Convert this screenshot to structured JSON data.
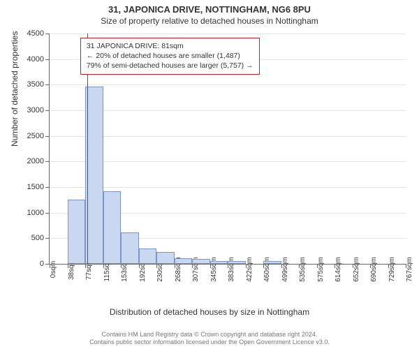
{
  "title_main": "31, JAPONICA DRIVE, NOTTINGHAM, NG6 8PU",
  "title_sub": "Size of property relative to detached houses in Nottingham",
  "chart": {
    "type": "histogram",
    "y_label": "Number of detached properties",
    "x_label": "Distribution of detached houses by size in Nottingham",
    "ylim": [
      0,
      4500
    ],
    "y_tick_step": 500,
    "y_ticks": [
      0,
      500,
      1000,
      1500,
      2000,
      2500,
      3000,
      3500,
      4000,
      4500
    ],
    "x_tick_labels": [
      "0sqm",
      "38sqm",
      "77sqm",
      "115sqm",
      "153sqm",
      "192sqm",
      "230sqm",
      "268sqm",
      "307sqm",
      "345sqm",
      "383sqm",
      "422sqm",
      "460sqm",
      "499sqm",
      "535sqm",
      "575sqm",
      "614sqm",
      "652sqm",
      "690sqm",
      "729sqm",
      "767sqm"
    ],
    "bar_values": [
      0,
      1250,
      3470,
      1420,
      610,
      300,
      230,
      110,
      90,
      60,
      50,
      0,
      55,
      0,
      0,
      0,
      0,
      0,
      0,
      0
    ],
    "bar_fill_color": "#c9d7f0",
    "bar_border_color": "#7a94c9",
    "grid_color": "#e5e5e5",
    "axis_color": "#666666",
    "background_color": "#ffffff",
    "marker": {
      "position_sqm": 81,
      "x_max_sqm": 767,
      "color": "#d01c2a"
    },
    "info_box": {
      "line1": "31 JAPONICA DRIVE: 81sqm",
      "line2": "← 20% of detached houses are smaller (1,487)",
      "line3": "79% of semi-detached houses are larger (5,757) →",
      "border_color": "#d01c2a"
    }
  },
  "footer_line1": "Contains HM Land Registry data © Crown copyright and database right 2024.",
  "footer_line2": "Contains public sector information licensed under the Open Government Licence v3.0."
}
